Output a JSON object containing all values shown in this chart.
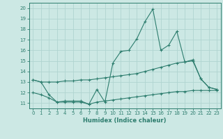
{
  "x": [
    0,
    1,
    2,
    3,
    4,
    5,
    6,
    7,
    8,
    9,
    10,
    11,
    12,
    13,
    14,
    15,
    16,
    17,
    18,
    19,
    20,
    21,
    22,
    23
  ],
  "line1": [
    13.2,
    13.0,
    11.8,
    11.1,
    11.2,
    11.2,
    11.2,
    10.9,
    12.3,
    11.1,
    14.8,
    15.9,
    16.0,
    17.1,
    18.7,
    19.9,
    16.0,
    16.5,
    17.8,
    14.9,
    15.1,
    13.3,
    12.5,
    12.3
  ],
  "line2": [
    13.2,
    13.0,
    13.0,
    13.0,
    13.1,
    13.1,
    13.2,
    13.2,
    13.3,
    13.4,
    13.5,
    13.6,
    13.7,
    13.8,
    14.0,
    14.2,
    14.4,
    14.6,
    14.8,
    14.9,
    15.0,
    13.3,
    12.5,
    12.3
  ],
  "line3": [
    12.0,
    11.8,
    11.5,
    11.1,
    11.1,
    11.1,
    11.1,
    10.9,
    11.1,
    11.2,
    11.3,
    11.4,
    11.5,
    11.6,
    11.7,
    11.8,
    11.9,
    12.0,
    12.1,
    12.1,
    12.2,
    12.2,
    12.2,
    12.2
  ],
  "color": "#2d7d6e",
  "bg_color": "#cce8e4",
  "grid_color": "#b0d4d0",
  "xlabel": "Humidex (Indice chaleur)",
  "ylim": [
    10.5,
    20.5
  ],
  "xlim": [
    -0.5,
    23.5
  ],
  "yticks": [
    11,
    12,
    13,
    14,
    15,
    16,
    17,
    18,
    19,
    20
  ],
  "xticks": [
    0,
    1,
    2,
    3,
    4,
    5,
    6,
    7,
    8,
    9,
    10,
    11,
    12,
    13,
    14,
    15,
    16,
    17,
    18,
    19,
    20,
    21,
    22,
    23
  ]
}
